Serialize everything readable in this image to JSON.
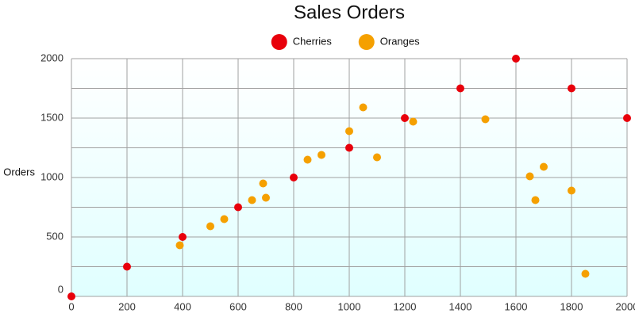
{
  "chart_data": {
    "type": "scatter",
    "title": "Sales Orders",
    "y_label": "Orders",
    "xlim": [
      0,
      2000
    ],
    "xticks": [
      0,
      200,
      400,
      600,
      800,
      1000,
      1200,
      1400,
      1600,
      1800,
      2000
    ],
    "ylim": [
      0,
      2000
    ],
    "yticks": [
      0,
      500,
      1000,
      1500,
      2000
    ],
    "y_minor_grid": [
      250,
      750,
      1250,
      1750
    ],
    "grid": true,
    "legend": "top",
    "series": [
      {
        "name": "Cherries",
        "color": "#e8000b",
        "x": [
          0,
          200,
          400,
          600,
          800,
          1000,
          1200,
          1400,
          1600,
          1800,
          2000
        ],
        "values": [
          0,
          250,
          500,
          750,
          1000,
          1250,
          1500,
          1750,
          2000,
          1750,
          1500
        ]
      },
      {
        "name": "Oranges",
        "color": "#f5a000",
        "x": [
          390,
          500,
          550,
          650,
          690,
          700,
          850,
          900,
          1000,
          1050,
          1100,
          1230,
          1490,
          1650,
          1700,
          1670,
          1800,
          1850
        ],
        "values": [
          430,
          590,
          650,
          810,
          950,
          830,
          1150,
          1190,
          1390,
          1590,
          1170,
          1470,
          1490,
          1010,
          1090,
          810,
          890,
          190
        ]
      }
    ]
  }
}
